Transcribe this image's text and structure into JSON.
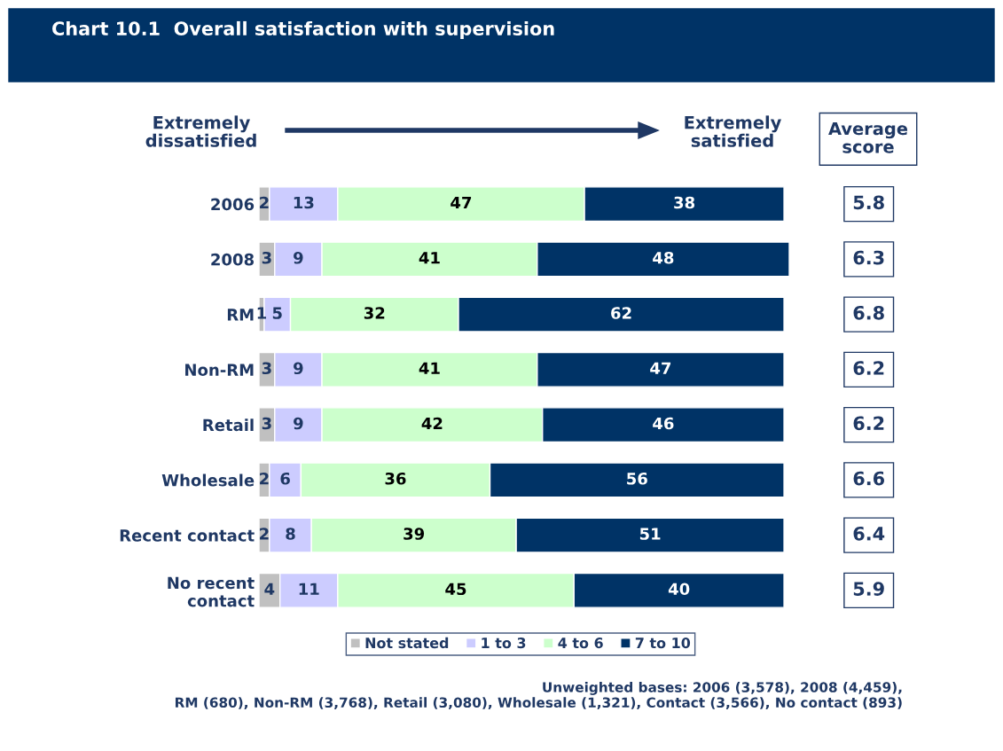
{
  "chart_data": {
    "type": "bar",
    "orientation": "horizontal",
    "stacked": true,
    "title": "Chart 10.1  Overall satisfaction with supervision",
    "categories": [
      "2006",
      "2008",
      "RM",
      "Non-RM",
      "Retail",
      "Wholesale",
      "Recent contact",
      "No recent\ncontact"
    ],
    "series": [
      {
        "name": "Not stated",
        "color": "#c0c0c0",
        "values": [
          2,
          3,
          1,
          3,
          3,
          2,
          2,
          4
        ]
      },
      {
        "name": "1 to 3",
        "color": "#ccccff",
        "values": [
          13,
          9,
          5,
          9,
          9,
          6,
          8,
          11
        ]
      },
      {
        "name": "4 to 6",
        "color": "#ccffcc",
        "values": [
          47,
          41,
          32,
          41,
          42,
          36,
          39,
          45
        ]
      },
      {
        "name": "7 to 10",
        "color": "#003366",
        "values": [
          38,
          48,
          62,
          47,
          46,
          56,
          51,
          40
        ]
      }
    ],
    "data_labels": true,
    "tick_labels": "y",
    "legend": "bottom",
    "grid": false,
    "annotations": [
      "Extremely\ndissatisfied",
      "Extremely\nsatisfied",
      "Average\nscore",
      "5.8",
      "6.3",
      "6.8",
      "6.2",
      "6.2",
      "6.6",
      "6.4",
      "5.9",
      "Unweighted bases: 2006 (3,578), 2008 (4,459),\nRM (680), Non-RM (3,768), Retail (3,080), Wholesale (1,321), Contact (3,566), No contact (893)"
    ]
  }
}
